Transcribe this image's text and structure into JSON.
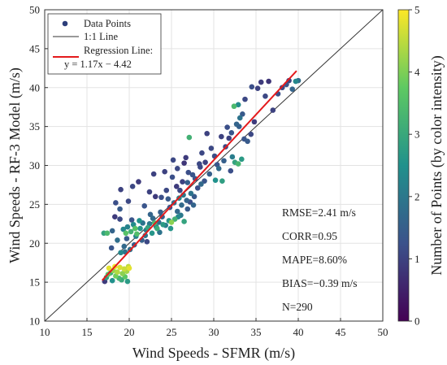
{
  "chart_data": {
    "type": "scatter",
    "xlabel": "Wind Speeds - SFMR (m/s)",
    "ylabel": "Wind Speeds - RF-3 Model (m/s)",
    "xlim": [
      10,
      50
    ],
    "ylim": [
      10,
      50
    ],
    "xticks": [
      "10",
      "15",
      "20",
      "25",
      "30",
      "35",
      "40",
      "45",
      "50"
    ],
    "yticks": [
      "10",
      "15",
      "20",
      "25",
      "30",
      "35",
      "40",
      "45",
      "50"
    ],
    "grid": true,
    "legend_position": "top-left",
    "legend": {
      "points": "Data Points",
      "identity": "1:1 Line",
      "regression_1": "Regression Line:",
      "regression_2": "y = 1.17x − 4.42"
    },
    "colorbar": {
      "label": "Number of Points (by color intensity)",
      "min": 0,
      "max": 5,
      "ticks": [
        "0",
        "1",
        "2",
        "3",
        "4",
        "5"
      ],
      "colormap": [
        "#440154",
        "#3b528b",
        "#21918c",
        "#5ec962",
        "#fde725"
      ]
    },
    "stats": {
      "rmse": "RMSE=2.41 m/s",
      "corr": "CORR=0.95",
      "mape": "MAPE=8.60%",
      "bias": "BIAS=−0.39 m/s",
      "n": "N=290"
    },
    "identity_line": {
      "x": [
        10,
        50
      ],
      "y": [
        10,
        50
      ]
    },
    "regression_line": {
      "slope": 1.17,
      "intercept": -4.42,
      "x_range": [
        16.8,
        39.8
      ]
    },
    "colors": {
      "identity": "#333333",
      "regression": "#e41a1c",
      "marker_default": "#2c3e7a"
    },
    "points": [
      [
        17.1,
        15.1,
        0.9
      ],
      [
        17.3,
        15.6,
        2.8
      ],
      [
        17.5,
        16.0,
        3.6
      ],
      [
        17.6,
        16.8,
        4.8
      ],
      [
        17.8,
        16.2,
        3.1
      ],
      [
        18.0,
        15.2,
        2.5
      ],
      [
        18.1,
        16.5,
        4.2
      ],
      [
        18.3,
        17.0,
        4.9
      ],
      [
        18.4,
        15.8,
        3.9
      ],
      [
        18.6,
        16.3,
        4.4
      ],
      [
        18.8,
        15.5,
        3.3
      ],
      [
        18.9,
        16.9,
        4.7
      ],
      [
        19.1,
        15.3,
        3.0
      ],
      [
        19.2,
        16.1,
        4.1
      ],
      [
        19.4,
        16.7,
        4.6
      ],
      [
        19.5,
        15.7,
        3.7
      ],
      [
        19.7,
        16.4,
        4.3
      ],
      [
        19.8,
        15.1,
        2.7
      ],
      [
        20.0,
        16.8,
        4.8
      ],
      [
        19.9,
        17.0,
        4.5
      ],
      [
        17.0,
        21.3,
        2.9
      ],
      [
        17.4,
        21.3,
        3.4
      ],
      [
        18.0,
        21.6,
        1.6
      ],
      [
        18.3,
        23.4,
        0.9
      ],
      [
        18.9,
        23.1,
        1.1
      ],
      [
        19.3,
        21.8,
        2.3
      ],
      [
        19.6,
        21.3,
        3.6
      ],
      [
        19.8,
        22.1,
        2.2
      ],
      [
        20.2,
        21.5,
        3.2
      ],
      [
        20.5,
        22.4,
        2.4
      ],
      [
        20.9,
        21.2,
        3.5
      ],
      [
        21.3,
        21.9,
        2.6
      ],
      [
        21.6,
        22.6,
        1.9
      ],
      [
        22.0,
        21.7,
        2.1
      ],
      [
        22.4,
        22.5,
        2.0
      ],
      [
        22.8,
        23.2,
        1.7
      ],
      [
        23.2,
        22.1,
        2.3
      ],
      [
        23.5,
        22.7,
        1.8
      ],
      [
        23.9,
        23.4,
        1.5
      ],
      [
        24.3,
        22.3,
        2.1
      ],
      [
        24.7,
        22.9,
        2.6
      ],
      [
        25.0,
        22.7,
        4.1
      ],
      [
        25.4,
        23.1,
        3.2
      ],
      [
        25.7,
        24.1,
        1.7
      ],
      [
        26.1,
        23.6,
        2.0
      ],
      [
        26.5,
        22.8,
        2.9
      ],
      [
        26.9,
        24.4,
        1.4
      ],
      [
        27.2,
        25.3,
        1.2
      ],
      [
        27.6,
        24.9,
        1.6
      ],
      [
        20.3,
        23.0,
        1.3
      ],
      [
        19.5,
        18.9,
        1.9
      ],
      [
        19.0,
        18.8,
        2.3
      ],
      [
        20.1,
        19.2,
        1.8
      ],
      [
        21.5,
        20.4,
        1.5
      ],
      [
        20.8,
        20.9,
        2.2
      ],
      [
        22.1,
        20.2,
        1.1
      ],
      [
        22.7,
        21.3,
        2.6
      ],
      [
        23.3,
        21.9,
        3.1
      ],
      [
        24.0,
        22.4,
        2.7
      ],
      [
        23.7,
        24.0,
        1.5
      ],
      [
        24.8,
        24.6,
        1.3
      ],
      [
        25.3,
        25.2,
        1.8
      ],
      [
        25.9,
        25.8,
        2.3
      ],
      [
        26.4,
        26.2,
        2.0
      ],
      [
        26.8,
        25.5,
        1.6
      ],
      [
        27.3,
        26.4,
        1.9
      ],
      [
        27.7,
        26.0,
        1.4
      ],
      [
        28.1,
        27.1,
        1.2
      ],
      [
        28.5,
        27.6,
        1.7
      ],
      [
        28.9,
        28.0,
        1.3
      ],
      [
        26.0,
        26.8,
        1.1
      ],
      [
        25.6,
        27.3,
        0.9
      ],
      [
        26.3,
        27.9,
        1.0
      ],
      [
        25.1,
        28.5,
        1.2
      ],
      [
        24.2,
        29.2,
        1.0
      ],
      [
        25.7,
        29.6,
        1.1
      ],
      [
        26.5,
        30.3,
        0.8
      ],
      [
        24.6,
        25.7,
        1.4
      ],
      [
        23.1,
        26.0,
        0.9
      ],
      [
        22.4,
        26.6,
        1.0
      ],
      [
        27.0,
        29.1,
        1.2
      ],
      [
        27.8,
        28.3,
        1.3
      ],
      [
        28.4,
        29.8,
        1.1
      ],
      [
        29.0,
        30.4,
        1.0
      ],
      [
        29.5,
        28.9,
        1.5
      ],
      [
        30.1,
        31.2,
        1.2
      ],
      [
        30.6,
        29.6,
        1.7
      ],
      [
        30.2,
        28.1,
        2.5
      ],
      [
        31.0,
        28.0,
        2.8
      ],
      [
        31.4,
        32.4,
        1.1
      ],
      [
        31.8,
        33.5,
        1.0
      ],
      [
        32.2,
        31.1,
        2.1
      ],
      [
        32.5,
        30.4,
        2.9
      ],
      [
        32.9,
        30.2,
        3.3
      ],
      [
        33.3,
        30.8,
        2.7
      ],
      [
        32.1,
        34.2,
        1.3
      ],
      [
        32.7,
        35.3,
        1.6
      ],
      [
        33.1,
        36.1,
        1.9
      ],
      [
        32.4,
        37.6,
        3.4
      ],
      [
        32.9,
        37.8,
        2.4
      ],
      [
        33.4,
        36.6,
        1.4
      ],
      [
        31.6,
        34.9,
        1.2
      ],
      [
        30.9,
        33.7,
        1.0
      ],
      [
        29.7,
        32.2,
        1.1
      ],
      [
        27.1,
        33.6,
        3.2
      ],
      [
        34.0,
        33.1,
        1.4
      ],
      [
        34.4,
        34.0,
        1.1
      ],
      [
        34.8,
        35.6,
        0.9
      ],
      [
        35.2,
        39.9,
        1.0
      ],
      [
        34.5,
        40.1,
        1.2
      ],
      [
        35.6,
        40.7,
        0.9
      ],
      [
        36.1,
        38.9,
        1.1
      ],
      [
        36.5,
        40.8,
        0.8
      ],
      [
        37.0,
        37.1,
        1.0
      ],
      [
        37.6,
        39.2,
        1.2
      ],
      [
        38.1,
        40.0,
        1.1
      ],
      [
        38.6,
        40.4,
        1.3
      ],
      [
        38.9,
        40.9,
        1.0
      ],
      [
        39.3,
        39.8,
        1.6
      ],
      [
        39.7,
        40.8,
        2.3
      ],
      [
        40.0,
        40.9,
        1.8
      ],
      [
        33.7,
        38.5,
        1.1
      ],
      [
        29.2,
        34.1,
        1.0
      ],
      [
        28.6,
        31.6,
        1.1
      ],
      [
        26.7,
        31.0,
        0.9
      ],
      [
        25.2,
        30.7,
        1.1
      ],
      [
        22.9,
        28.9,
        1.0
      ],
      [
        21.1,
        27.9,
        0.9
      ],
      [
        20.4,
        27.3,
        1.1
      ],
      [
        19.0,
        26.9,
        1.0
      ],
      [
        18.4,
        25.2,
        1.2
      ],
      [
        18.9,
        24.4,
        1.4
      ],
      [
        19.9,
        25.4,
        1.1
      ],
      [
        21.8,
        24.8,
        1.3
      ],
      [
        23.8,
        25.9,
        1.2
      ],
      [
        24.4,
        26.8,
        1.1
      ],
      [
        26.9,
        27.8,
        1.5
      ],
      [
        27.5,
        28.8,
        1.3
      ],
      [
        28.3,
        30.2,
        1.1
      ],
      [
        30.4,
        30.1,
        1.3
      ],
      [
        31.2,
        30.6,
        1.5
      ],
      [
        32.0,
        29.3,
        1.2
      ],
      [
        33.0,
        35.0,
        1.5
      ],
      [
        33.6,
        33.4,
        1.3
      ],
      [
        19.4,
        19.6,
        1.7
      ],
      [
        20.6,
        19.8,
        1.5
      ],
      [
        21.9,
        21.0,
        1.9
      ],
      [
        21.2,
        22.9,
        2.5
      ],
      [
        22.5,
        23.7,
        1.6
      ],
      [
        25.8,
        23.4,
        2.3
      ],
      [
        26.2,
        24.9,
        1.7
      ],
      [
        24.9,
        21.9,
        2.6
      ],
      [
        23.6,
        21.4,
        1.9
      ],
      [
        18.6,
        20.4,
        1.8
      ],
      [
        17.9,
        19.4,
        1.3
      ],
      [
        19.7,
        20.6,
        1.4
      ],
      [
        20.7,
        21.9,
        3.6
      ],
      [
        22.2,
        22.0,
        2.9
      ],
      [
        23.0,
        22.6,
        3.4
      ]
    ]
  }
}
